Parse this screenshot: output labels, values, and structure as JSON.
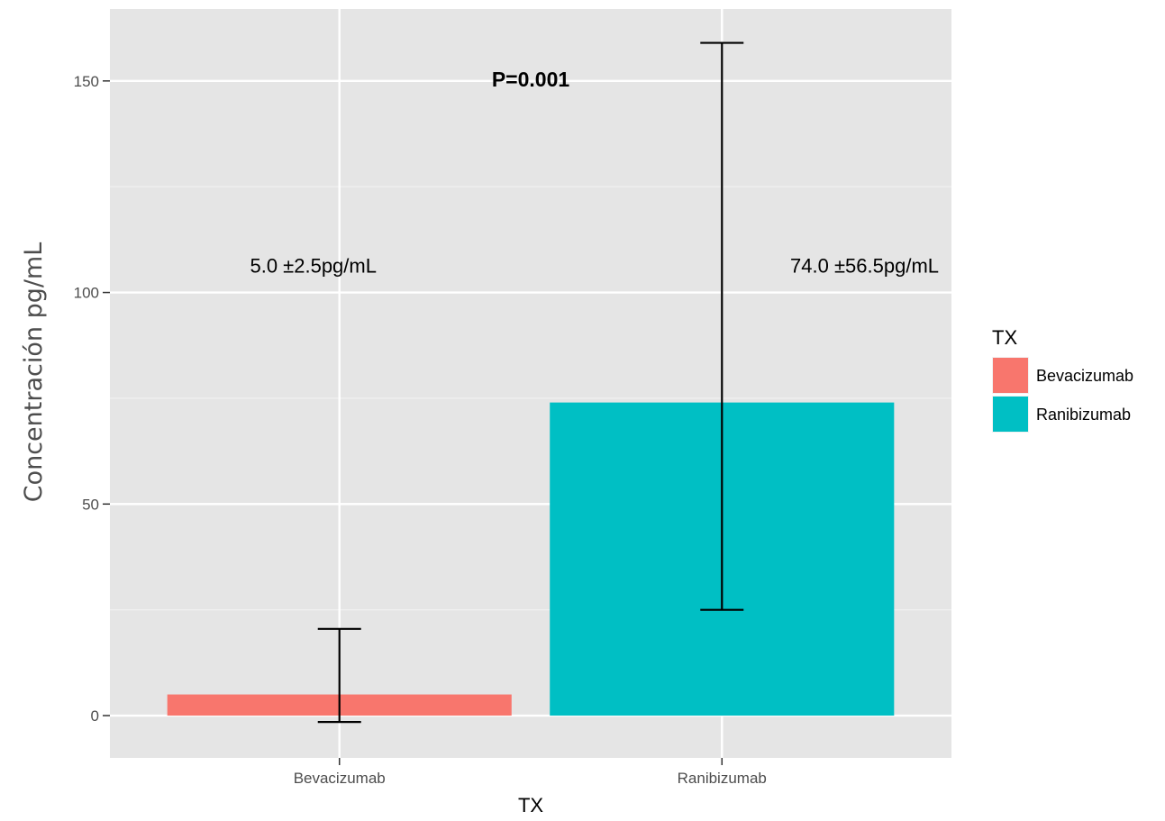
{
  "chart_data": {
    "type": "bar",
    "categories": [
      "Bevacizumab",
      "Ranibizumab"
    ],
    "values": [
      5.0,
      74.0
    ],
    "error_bars": [
      {
        "low": -1.5,
        "high": 20.5
      },
      {
        "low": 25.0,
        "high": 159.0
      }
    ],
    "colors": [
      "#F8766D",
      "#00BFC4"
    ],
    "xlabel": "TX",
    "ylabel": "Concentración pg/mL",
    "ylim": [
      -10,
      167
    ],
    "yticks": [
      0,
      50,
      100,
      150
    ],
    "grid": true,
    "legend": {
      "title": "TX",
      "position": "right",
      "entries": [
        "Bevacizumab",
        "Ranibizumab"
      ]
    },
    "annotations": [
      {
        "text": "5.0 ±2.5pg/mL",
        "category": "Bevacizumab",
        "y": 103
      },
      {
        "text": "74.0 ±56.5pg/mL",
        "category": "Ranibizumab",
        "y": 103
      },
      {
        "text": "P=0.001",
        "category": "between",
        "y": 147,
        "bold": true
      }
    ]
  }
}
